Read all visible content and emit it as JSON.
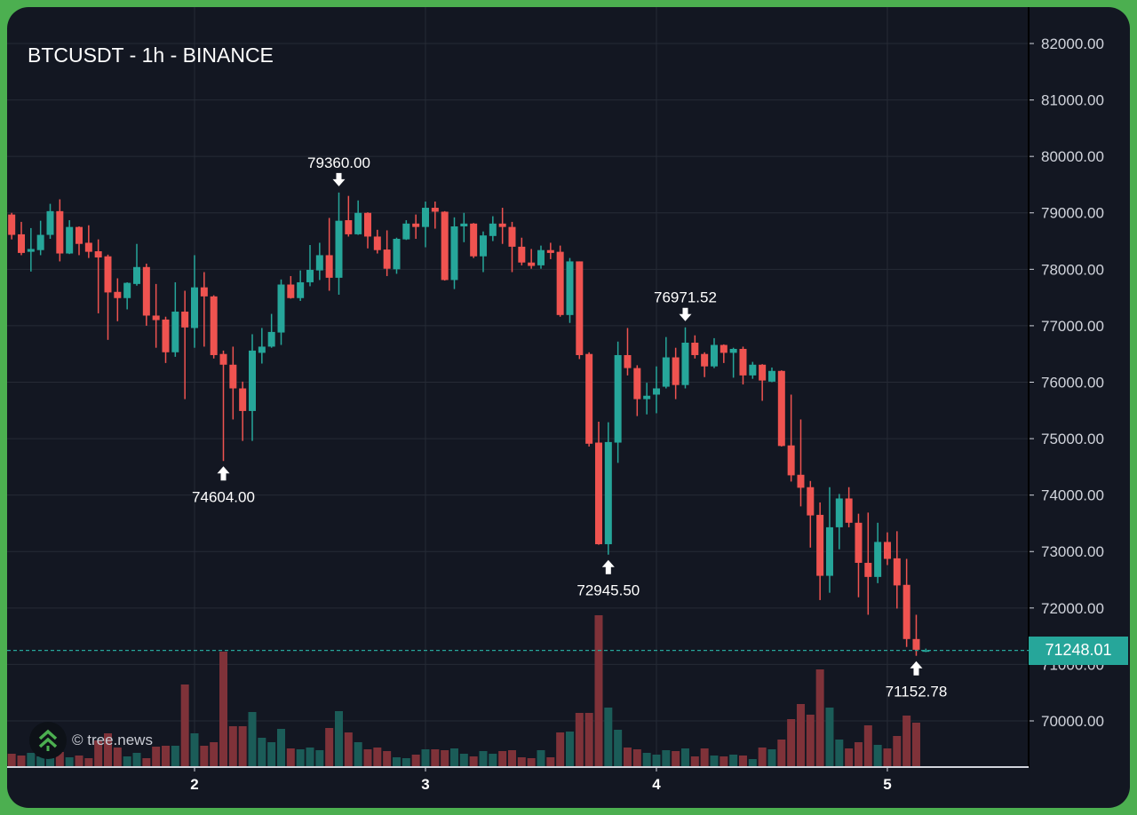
{
  "header": {
    "title": "BTCUSDT - 1h - BINANCE"
  },
  "watermark": {
    "text": "© tree.news"
  },
  "colors": {
    "up": "#26a69a",
    "down": "#ef5350",
    "up_volume": "#1b5c58",
    "down_volume": "#7f3239",
    "background": "#131722",
    "grid": "#262b36",
    "frame": "#4caf50"
  },
  "chart_data": {
    "type": "candlestick",
    "title": "BTCUSDT - 1h - BINANCE",
    "interval": "1h",
    "ylim": [
      69300,
      82600
    ],
    "grid": true,
    "y_ticks": [
      "82000.00",
      "81000.00",
      "80000.00",
      "79000.00",
      "78000.00",
      "77000.00",
      "76000.00",
      "75000.00",
      "74000.00",
      "73000.00",
      "72000.00",
      "71000.00",
      "70000.00"
    ],
    "y_tick_values": [
      82000,
      81000,
      80000,
      79000,
      78000,
      77000,
      76000,
      75000,
      74000,
      73000,
      72000,
      71000,
      70000
    ],
    "x_ticks": [
      {
        "label": "2",
        "index": 19
      },
      {
        "label": "3",
        "index": 43
      },
      {
        "label": "4",
        "index": 67
      },
      {
        "label": "5",
        "index": 91
      }
    ],
    "last_price": "71248.01",
    "last_price_value": 71248.01,
    "annotations": [
      {
        "label": "79360.00",
        "index": 34,
        "price": 79360.0,
        "side": "above"
      },
      {
        "label": "74604.00",
        "index": 22,
        "price": 74604.0,
        "side": "below"
      },
      {
        "label": "72945.50",
        "index": 62,
        "price": 72945.5,
        "side": "below"
      },
      {
        "label": "76971.52",
        "index": 70,
        "price": 76971.52,
        "side": "above"
      },
      {
        "label": "71152.78",
        "index": 94,
        "price": 71152.78,
        "side": "below"
      }
    ],
    "ohlc": [
      [
        78970,
        79000,
        78530,
        78610
      ],
      [
        78620,
        78840,
        78250,
        78290
      ],
      [
        78310,
        78730,
        77960,
        78360
      ],
      [
        78340,
        78860,
        78250,
        78610
      ],
      [
        78610,
        79160,
        78540,
        79030
      ],
      [
        79030,
        79240,
        78140,
        78280
      ],
      [
        78280,
        78870,
        78270,
        78750
      ],
      [
        78750,
        78760,
        78250,
        78450
      ],
      [
        78470,
        78780,
        78200,
        78310
      ],
      [
        78320,
        78530,
        77220,
        78210
      ],
      [
        78230,
        78260,
        76750,
        77590
      ],
      [
        77600,
        77840,
        77080,
        77490
      ],
      [
        77490,
        77770,
        77290,
        77760
      ],
      [
        77740,
        78450,
        77710,
        78040
      ],
      [
        78040,
        78100,
        77000,
        77180
      ],
      [
        77180,
        77740,
        76610,
        77100
      ],
      [
        77110,
        77160,
        76340,
        76530
      ],
      [
        76530,
        77770,
        76450,
        77250
      ],
      [
        77250,
        77620,
        75700,
        76970
      ],
      [
        76960,
        78250,
        76610,
        77680
      ],
      [
        77680,
        77950,
        76630,
        77520
      ],
      [
        77520,
        77540,
        76420,
        76480
      ],
      [
        76500,
        76560,
        74604,
        76310
      ],
      [
        76310,
        76630,
        75340,
        75890
      ],
      [
        75890,
        76010,
        74960,
        75490
      ],
      [
        75490,
        76850,
        74960,
        76560
      ],
      [
        76520,
        76960,
        76330,
        76630
      ],
      [
        76630,
        77210,
        76610,
        76890
      ],
      [
        76880,
        77820,
        76660,
        77730
      ],
      [
        77730,
        77880,
        77480,
        77490
      ],
      [
        77490,
        77980,
        77440,
        77770
      ],
      [
        77770,
        78430,
        77700,
        77990
      ],
      [
        77980,
        78470,
        77810,
        78250
      ],
      [
        78250,
        78910,
        77620,
        77850
      ],
      [
        77850,
        79360,
        77550,
        78860
      ],
      [
        78870,
        79300,
        78580,
        78620
      ],
      [
        78620,
        79220,
        78610,
        79000
      ],
      [
        79000,
        79010,
        78370,
        78580
      ],
      [
        78580,
        78700,
        78280,
        78340
      ],
      [
        78350,
        78690,
        77880,
        78010
      ],
      [
        78000,
        78560,
        77920,
        78540
      ],
      [
        78530,
        78870,
        78520,
        78810
      ],
      [
        78810,
        78970,
        78540,
        78750
      ],
      [
        78750,
        79200,
        78390,
        79090
      ],
      [
        79090,
        79200,
        78720,
        79020
      ],
      [
        79020,
        79030,
        77800,
        77810
      ],
      [
        77810,
        78920,
        77650,
        78760
      ],
      [
        78760,
        79000,
        78480,
        78810
      ],
      [
        78810,
        78820,
        78200,
        78230
      ],
      [
        78230,
        78670,
        77950,
        78600
      ],
      [
        78590,
        78940,
        78500,
        78810
      ],
      [
        78810,
        79090,
        78450,
        78750
      ],
      [
        78750,
        78840,
        77950,
        78400
      ],
      [
        78400,
        78560,
        78070,
        78120
      ],
      [
        78120,
        78360,
        78010,
        78060
      ],
      [
        78070,
        78420,
        78010,
        78340
      ],
      [
        78340,
        78470,
        78180,
        78290
      ],
      [
        78310,
        78420,
        77160,
        77190
      ],
      [
        77190,
        78200,
        77050,
        78140
      ],
      [
        78140,
        78140,
        76410,
        76480
      ],
      [
        76500,
        76530,
        74860,
        74910
      ],
      [
        74930,
        75300,
        73120,
        73130
      ],
      [
        73130,
        75290,
        72945.5,
        74940
      ],
      [
        74930,
        76720,
        74570,
        76480
      ],
      [
        76480,
        76960,
        76120,
        76250
      ],
      [
        76250,
        76300,
        75400,
        75700
      ],
      [
        75700,
        75990,
        75430,
        75760
      ],
      [
        75780,
        76280,
        75450,
        75890
      ],
      [
        75920,
        76800,
        75890,
        76440
      ],
      [
        76440,
        76610,
        75700,
        75950
      ],
      [
        75950,
        76971.52,
        75890,
        76700
      ],
      [
        76700,
        76830,
        76420,
        76480
      ],
      [
        76500,
        76530,
        76090,
        76280
      ],
      [
        76280,
        76780,
        76250,
        76660
      ],
      [
        76660,
        76670,
        76340,
        76520
      ],
      [
        76520,
        76610,
        76080,
        76590
      ],
      [
        76590,
        76630,
        75960,
        76120
      ],
      [
        76120,
        76360,
        76060,
        76310
      ],
      [
        76310,
        76320,
        75670,
        76030
      ],
      [
        76010,
        76260,
        76000,
        76200
      ],
      [
        76200,
        76210,
        74860,
        74870
      ],
      [
        74880,
        75780,
        74240,
        74350
      ],
      [
        74360,
        75340,
        73800,
        74130
      ],
      [
        74140,
        74250,
        73070,
        73640
      ],
      [
        73650,
        73870,
        72140,
        72570
      ],
      [
        72570,
        74140,
        72270,
        73430
      ],
      [
        73430,
        74020,
        73040,
        73940
      ],
      [
        73940,
        74140,
        73430,
        73510
      ],
      [
        73510,
        73670,
        72190,
        72800
      ],
      [
        72800,
        73690,
        71880,
        72550
      ],
      [
        72550,
        73510,
        72440,
        73170
      ],
      [
        73170,
        73340,
        72760,
        72870
      ],
      [
        72880,
        73360,
        71990,
        72400
      ],
      [
        72410,
        72870,
        71310,
        71450
      ],
      [
        71450,
        71880,
        71152.78,
        71260
      ],
      [
        71230,
        71280,
        71220,
        71248.01
      ]
    ],
    "volume_relative": [
      15,
      13,
      16,
      12,
      10,
      17,
      11,
      13,
      10,
      30,
      38,
      22,
      12,
      16,
      10,
      23,
      24,
      24,
      93,
      38,
      24,
      28,
      130,
      46,
      46,
      62,
      33,
      28,
      43,
      21,
      20,
      22,
      19,
      44,
      63,
      39,
      28,
      20,
      22,
      18,
      11,
      10,
      14,
      20,
      20,
      19,
      21,
      15,
      12,
      18,
      15,
      18,
      19,
      11,
      10,
      19,
      11,
      39,
      40,
      61,
      61,
      171,
      67,
      42,
      22,
      20,
      16,
      14,
      19,
      18,
      21,
      12,
      21,
      13,
      12,
      14,
      13,
      9,
      22,
      20,
      31,
      54,
      71,
      59,
      110,
      67,
      31,
      21,
      28,
      47,
      25,
      21,
      35,
      58,
      50,
      1
    ]
  }
}
